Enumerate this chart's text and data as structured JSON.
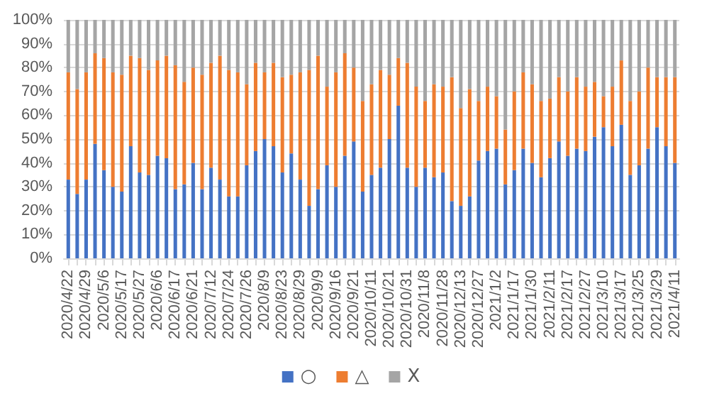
{
  "chart_data": {
    "type": "bar",
    "stacked": true,
    "grid": "y",
    "legend": "bottom",
    "categories": [
      "2020/4/22",
      null,
      "2020/4/29",
      null,
      "2020/5/6",
      null,
      "2020/5/17",
      null,
      "2020/5/27",
      null,
      "2020/6/6",
      null,
      "2020/6/17",
      null,
      "2020/6/21",
      null,
      "2020/7/12",
      null,
      "2020/7/24",
      null,
      "2020/7/26",
      null,
      "2020/8/9",
      null,
      "2020/8/23",
      null,
      "2020/8/29",
      null,
      "2020/9/9",
      null,
      "2020/9/16",
      null,
      "2020/9/21",
      null,
      "2020/10/11",
      null,
      "2020/10/21",
      null,
      "2020/10/31",
      null,
      "2020/11/8",
      null,
      "2020/11/28",
      null,
      "2020/12/13",
      null,
      "2020/12/27",
      null,
      "2021/1/2",
      null,
      "2021/1/17",
      null,
      "2021/1/30",
      null,
      "2021/2/11",
      null,
      "2021/2/17",
      null,
      "2021/2/27",
      null,
      "2021/3/10",
      null,
      "2021/3/17",
      null,
      "2021/3/25",
      null,
      "2021/3/29",
      null,
      "2021/4/11"
    ],
    "ylim": [
      0,
      100
    ],
    "yticks": [
      {
        "value": 0,
        "label": "0%"
      },
      {
        "value": 10,
        "label": "10%"
      },
      {
        "value": 20,
        "label": "20%"
      },
      {
        "value": 30,
        "label": "30%"
      },
      {
        "value": 40,
        "label": "40%"
      },
      {
        "value": 50,
        "label": "50%"
      },
      {
        "value": 60,
        "label": "60%"
      },
      {
        "value": 70,
        "label": "70%"
      },
      {
        "value": 80,
        "label": "80%"
      },
      {
        "value": 90,
        "label": "90%"
      },
      {
        "value": 100,
        "label": "100%"
      }
    ],
    "series": [
      {
        "name": "○",
        "color": "#4472c4",
        "values": [
          33,
          27,
          33,
          48,
          37,
          30,
          28,
          47,
          36,
          35,
          43,
          42,
          29,
          31,
          40,
          29,
          38,
          33,
          26,
          26,
          39,
          45,
          50,
          47,
          36,
          44,
          33,
          22,
          29,
          39,
          30,
          43,
          49,
          28,
          35,
          38,
          50,
          64,
          38,
          30,
          38,
          34,
          36,
          24,
          22,
          26,
          41,
          45,
          46,
          31,
          37,
          46,
          40,
          34,
          42,
          49,
          43,
          46,
          45,
          51,
          55,
          47,
          56,
          35,
          39,
          46,
          55,
          47,
          40
        ]
      },
      {
        "name": "△",
        "color": "#ed7d31",
        "values": [
          45,
          44,
          45,
          38,
          47,
          48,
          49,
          38,
          48,
          44,
          40,
          43,
          52,
          43,
          40,
          48,
          44,
          52,
          53,
          52,
          34,
          37,
          28,
          35,
          40,
          33,
          45,
          57,
          56,
          33,
          48,
          43,
          31,
          38,
          38,
          41,
          27,
          20,
          44,
          42,
          28,
          39,
          36,
          52,
          41,
          45,
          25,
          27,
          22,
          23,
          33,
          32,
          33,
          32,
          25,
          27,
          27,
          30,
          27,
          23,
          13,
          25,
          27,
          31,
          31,
          34,
          21,
          29,
          36
        ]
      },
      {
        "name": "X",
        "color": "#a5a5a5",
        "values": [
          22,
          29,
          22,
          14,
          16,
          22,
          23,
          15,
          16,
          21,
          17,
          15,
          19,
          26,
          20,
          23,
          18,
          15,
          21,
          22,
          27,
          18,
          22,
          18,
          24,
          23,
          22,
          21,
          15,
          28,
          22,
          14,
          20,
          34,
          27,
          21,
          23,
          16,
          18,
          28,
          34,
          27,
          28,
          24,
          37,
          29,
          34,
          28,
          32,
          46,
          30,
          22,
          27,
          34,
          33,
          24,
          30,
          24,
          28,
          26,
          32,
          28,
          17,
          34,
          30,
          20,
          24,
          24,
          24
        ]
      }
    ]
  }
}
